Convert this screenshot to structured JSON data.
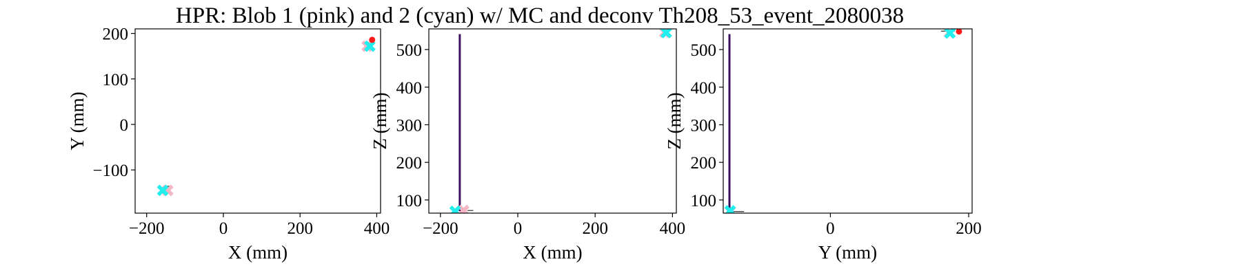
{
  "figure": {
    "title": "HPR: Blob 1 (pink) and 2 (cyan) w/ MC and deconv Th208_53_event_2080038"
  },
  "colors": {
    "blob1": "#f4b6c2",
    "blob2": "#22eeee",
    "mc": "#ff1a1a",
    "track": "#3b0f5e",
    "axis": "#000000"
  },
  "chart_data": [
    {
      "type": "scatter",
      "xlabel": "X (mm)",
      "ylabel": "Y (mm)",
      "xlim": [
        -230,
        410
      ],
      "ylim": [
        -195,
        210
      ],
      "xticks": [
        -200,
        0,
        200,
        400
      ],
      "yticks": [
        -100,
        0,
        100,
        200
      ],
      "blob1": [
        {
          "x": -145,
          "y": -145
        },
        {
          "x": 375,
          "y": 172
        }
      ],
      "blob2": [
        {
          "x": -158,
          "y": -145
        },
        {
          "x": 382,
          "y": 172
        }
      ],
      "mc": [
        {
          "x": 388,
          "y": 186
        }
      ],
      "tracks": [],
      "ticks_marks": [
        {
          "x1": -155,
          "x2": -140,
          "y": -136
        },
        {
          "x1": 376,
          "x2": 390,
          "y": 180
        }
      ]
    },
    {
      "type": "scatter",
      "xlabel": "X (mm)",
      "ylabel": "Z (mm)",
      "xlim": [
        -230,
        410
      ],
      "ylim": [
        65,
        555
      ],
      "xticks": [
        -200,
        0,
        200,
        400
      ],
      "yticks": [
        100,
        200,
        300,
        400,
        500
      ],
      "blob1": [
        {
          "x": -140,
          "y": 72
        },
        {
          "x": 380,
          "y": 546
        }
      ],
      "blob2": [
        {
          "x": -162,
          "y": 70
        },
        {
          "x": 384,
          "y": 545
        }
      ],
      "mc": [],
      "tracks": [
        {
          "x": -150,
          "y1": 70,
          "y2": 541
        }
      ],
      "ticks_marks": [
        {
          "x1": -130,
          "x2": -115,
          "y": 72
        }
      ]
    },
    {
      "type": "scatter",
      "xlabel": "Y (mm)",
      "ylabel": "Z (mm)",
      "xlim": [
        -155,
        205
      ],
      "ylim": [
        65,
        555
      ],
      "xticks": [
        0,
        200
      ],
      "yticks": [
        100,
        200,
        300,
        400,
        500
      ],
      "blob1": [
        {
          "x": -145,
          "y": 70
        },
        {
          "x": 172,
          "y": 545
        }
      ],
      "blob2": [
        {
          "x": -145,
          "y": 71
        },
        {
          "x": 173,
          "y": 544
        }
      ],
      "mc": [
        {
          "x": 186,
          "y": 548
        }
      ],
      "tracks": [
        {
          "x": -146,
          "y1": 70,
          "y2": 541
        }
      ],
      "ticks_marks": [
        {
          "x1": -150,
          "x2": -125,
          "y": 69
        },
        {
          "x1": 160,
          "x2": 180,
          "y": 549
        }
      ]
    }
  ]
}
